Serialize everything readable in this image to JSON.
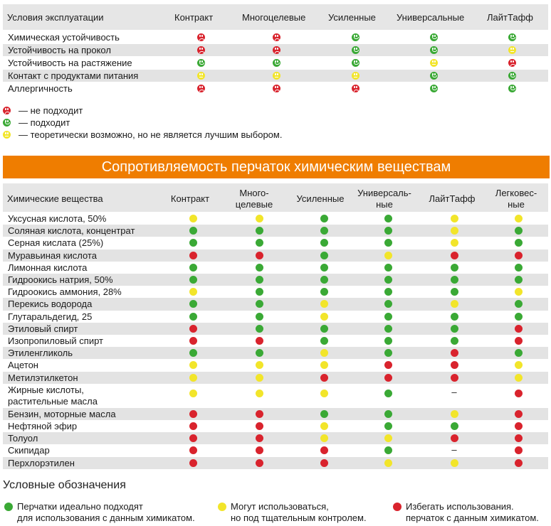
{
  "top_table": {
    "headers": [
      "Условия эксплуатации",
      "Контракт",
      "Многоцелевые",
      "Усиленные",
      "Универсальные",
      "ЛайтТафф"
    ],
    "rows": [
      {
        "label": "Химическая устойчивость",
        "values": [
          "bad",
          "bad",
          "good",
          "good",
          "good"
        ]
      },
      {
        "label": "Устойчивость на прокол",
        "values": [
          "bad",
          "bad",
          "good",
          "good",
          "mid"
        ]
      },
      {
        "label": "Устойчивость на растяжение",
        "values": [
          "good",
          "good",
          "good",
          "mid",
          "bad"
        ]
      },
      {
        "label": "Контакт с продуктами питания",
        "values": [
          "mid",
          "mid",
          "mid",
          "good",
          "good"
        ]
      },
      {
        "label": "Аллергичность",
        "values": [
          "bad",
          "bad",
          "bad",
          "good",
          "good"
        ]
      }
    ]
  },
  "top_legend": [
    {
      "status": "bad",
      "text": "— не подходит"
    },
    {
      "status": "good",
      "text": "— подходит"
    },
    {
      "status": "mid",
      "text": "— теоретически возможно, но не является лучшим выбором."
    }
  ],
  "banner": "Сопротивляемость перчаток химическим веществам",
  "chem_table": {
    "headers": [
      "Химические вещества",
      "Контракт",
      "Много-\nцелевые",
      "Усиленные",
      "Универсаль-\nные",
      "ЛайтТафф",
      "Легковес-\nные"
    ],
    "rows": [
      {
        "label": "Уксусная кислота, 50%",
        "values": [
          "mid",
          "mid",
          "good",
          "good",
          "mid",
          "mid"
        ]
      },
      {
        "label": "Соляная кислота, концентрат",
        "values": [
          "good",
          "good",
          "good",
          "good",
          "mid",
          "good"
        ]
      },
      {
        "label": "Серная кислата (25%)",
        "values": [
          "good",
          "good",
          "good",
          "good",
          "mid",
          "good"
        ]
      },
      {
        "label": "Муравьиная кислота",
        "values": [
          "bad",
          "bad",
          "good",
          "mid",
          "bad",
          "bad"
        ]
      },
      {
        "label": "Лимонная кислота",
        "values": [
          "good",
          "good",
          "good",
          "good",
          "good",
          "good"
        ]
      },
      {
        "label": "Гидроокись натрия, 50%",
        "values": [
          "good",
          "good",
          "good",
          "good",
          "good",
          "good"
        ]
      },
      {
        "label": "Гидроокись аммония, 28%",
        "values": [
          "mid",
          "good",
          "good",
          "good",
          "good",
          "mid"
        ]
      },
      {
        "label": "Перекись водорода",
        "values": [
          "good",
          "good",
          "mid",
          "good",
          "mid",
          "good"
        ]
      },
      {
        "label": "Глутаральдегид, 25",
        "values": [
          "good",
          "good",
          "mid",
          "good",
          "good",
          "good"
        ]
      },
      {
        "label": "Этиловый спирт",
        "values": [
          "bad",
          "good",
          "good",
          "good",
          "good",
          "bad"
        ]
      },
      {
        "label": "Изопропиловый спирт",
        "values": [
          "bad",
          "bad",
          "good",
          "good",
          "good",
          "bad"
        ]
      },
      {
        "label": "Этиленгликоль",
        "values": [
          "good",
          "good",
          "mid",
          "good",
          "bad",
          "good"
        ]
      },
      {
        "label": "Ацетон",
        "values": [
          "mid",
          "mid",
          "mid",
          "bad",
          "bad",
          "mid"
        ]
      },
      {
        "label": "Метилэтилкетон",
        "values": [
          "mid",
          "mid",
          "bad",
          "bad",
          "bad",
          "mid"
        ]
      },
      {
        "label": "Жирные кислоты,\nрастительные масла",
        "values": [
          "mid",
          "mid",
          "mid",
          "good",
          "–",
          "bad"
        ]
      },
      {
        "label": "Бензин, моторные масла",
        "values": [
          "bad",
          "bad",
          "good",
          "good",
          "mid",
          "bad"
        ]
      },
      {
        "label": "Нефтяной эфир",
        "values": [
          "bad",
          "bad",
          "mid",
          "good",
          "good",
          "bad"
        ]
      },
      {
        "label": "Толуол",
        "values": [
          "bad",
          "bad",
          "mid",
          "mid",
          "bad",
          "bad"
        ]
      },
      {
        "label": "Скипидар",
        "values": [
          "bad",
          "bad",
          "bad",
          "good",
          "–",
          "bad"
        ]
      },
      {
        "label": "Перхлорэтилен",
        "values": [
          "bad",
          "bad",
          "bad",
          "mid",
          "mid",
          "bad"
        ]
      }
    ]
  },
  "footer": {
    "title": "Условные обозначения",
    "items": [
      {
        "status": "good",
        "text": "Перчатки идеально подходят\nдля использования с данным химикатом."
      },
      {
        "status": "mid",
        "text": "Могут использоваться,\nно под тщательным контролем."
      },
      {
        "status": "bad",
        "text": "Избегать использования.\nперчаток с данным химикатом."
      }
    ]
  },
  "colors": {
    "good": "#3aa935",
    "mid": "#f2e52a",
    "bad": "#d9232d",
    "banner": "#ef7d00"
  }
}
